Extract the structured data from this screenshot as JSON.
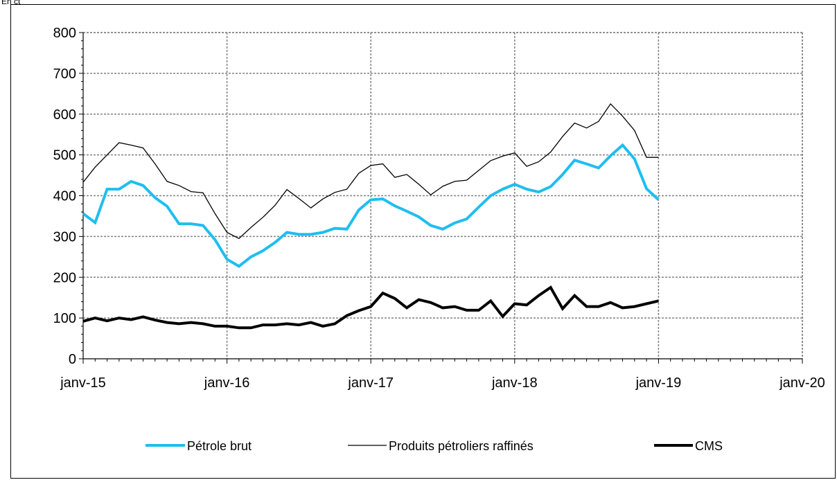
{
  "unit_label": "En ct",
  "chart_data": {
    "type": "line",
    "x": [
      "2015-01",
      "2015-02",
      "2015-03",
      "2015-04",
      "2015-05",
      "2015-06",
      "2015-07",
      "2015-08",
      "2015-09",
      "2015-10",
      "2015-11",
      "2015-12",
      "2016-01",
      "2016-02",
      "2016-03",
      "2016-04",
      "2016-05",
      "2016-06",
      "2016-07",
      "2016-08",
      "2016-09",
      "2016-10",
      "2016-11",
      "2016-12",
      "2017-01",
      "2017-02",
      "2017-03",
      "2017-04",
      "2017-05",
      "2017-06",
      "2017-07",
      "2017-08",
      "2017-09",
      "2017-10",
      "2017-11",
      "2017-12",
      "2018-01",
      "2018-02",
      "2018-03",
      "2018-04",
      "2018-05",
      "2018-06",
      "2018-07",
      "2018-08",
      "2018-09",
      "2018-10",
      "2018-11",
      "2018-12",
      "2019-01"
    ],
    "series": [
      {
        "name": "Pétrole brut",
        "color": "#1ebef0",
        "width": 4,
        "values": [
          356,
          334,
          416,
          416,
          435,
          425,
          395,
          374,
          331,
          331,
          327,
          292,
          244,
          227,
          250,
          265,
          285,
          310,
          305,
          305,
          310,
          320,
          318,
          365,
          390,
          392,
          375,
          362,
          348,
          327,
          318,
          333,
          343,
          372,
          400,
          416,
          428,
          416,
          409,
          422,
          452,
          487,
          478,
          468,
          498,
          524,
          490,
          417,
          390
        ]
      },
      {
        "name": "Produits pétroliers raffinés",
        "color": "#000000",
        "width": 1.3,
        "values": [
          433,
          470,
          500,
          530,
          524,
          517,
          478,
          435,
          425,
          410,
          407,
          356,
          310,
          295,
          322,
          347,
          376,
          415,
          393,
          370,
          392,
          408,
          416,
          455,
          474,
          478,
          445,
          452,
          428,
          402,
          423,
          435,
          438,
          462,
          486,
          497,
          505,
          472,
          483,
          507,
          545,
          578,
          566,
          582,
          625,
          595,
          560,
          494,
          494
        ]
      },
      {
        "name": "CMS",
        "color": "#000000",
        "width": 4,
        "values": [
          92,
          100,
          93,
          100,
          96,
          103,
          95,
          89,
          86,
          89,
          86,
          80,
          80,
          76,
          76,
          83,
          83,
          86,
          83,
          89,
          80,
          86,
          106,
          118,
          128,
          161,
          148,
          125,
          145,
          138,
          125,
          128,
          119,
          119,
          142,
          104,
          135,
          132,
          155,
          175,
          123,
          155,
          128,
          128,
          138,
          125,
          128,
          135,
          142
        ]
      }
    ],
    "ylim": [
      0,
      800
    ],
    "yticks": [
      "0",
      "100",
      "200",
      "300",
      "400",
      "500",
      "600",
      "700",
      "800"
    ],
    "xticks": [
      {
        "date": "2015-01",
        "label": "janv-15"
      },
      {
        "date": "2016-01",
        "label": "janv-16"
      },
      {
        "date": "2017-01",
        "label": "janv-17"
      },
      {
        "date": "2018-01",
        "label": "janv-18"
      },
      {
        "date": "2019-01",
        "label": "janv-19"
      },
      {
        "date": "2020-01",
        "label": "janv-20"
      }
    ],
    "xlim": [
      "2015-01",
      "2020-01"
    ],
    "grid": true,
    "grid_color": "#808080",
    "legend_position": "bottom"
  }
}
